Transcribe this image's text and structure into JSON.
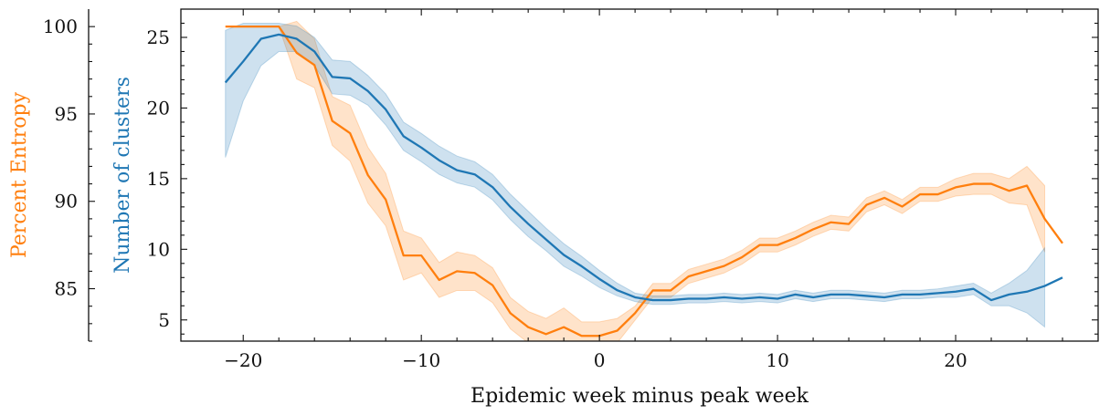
{
  "chart_data": {
    "type": "line",
    "title": "",
    "xlabel": "Epidemic week minus peak week",
    "xlim": [
      -23.5,
      28
    ],
    "x_ticks": [
      -20,
      -10,
      0,
      10,
      20
    ],
    "x_tick_labels": [
      "−20",
      "−10",
      "0",
      "10",
      "20"
    ],
    "y_left": {
      "label": "Number of clusters",
      "ylim": [
        3.5,
        27
      ],
      "ticks": [
        5,
        10,
        15,
        20,
        25
      ],
      "tick_labels": [
        "5",
        "10",
        "15",
        "20",
        "25"
      ],
      "color": "#1f77b4"
    },
    "y_outer": {
      "label": "Percent Entropy",
      "ylim": [
        82,
        101
      ],
      "ticks": [
        85,
        90,
        95,
        100
      ],
      "tick_labels": [
        "85",
        "90",
        "95",
        "100"
      ],
      "color": "#ff7f0e"
    },
    "series": [
      {
        "name": "Number of clusters",
        "axis": "y_left",
        "color": "#1f77b4",
        "x": [
          -21,
          -20,
          -19,
          -18,
          -17,
          -16,
          -15,
          -14,
          -13,
          -12,
          -11,
          -10,
          -9,
          -8,
          -7,
          -6,
          -5,
          -4,
          -3,
          -2,
          -1,
          0,
          1,
          2,
          3,
          4,
          5,
          6,
          7,
          8,
          9,
          10,
          11,
          12,
          13,
          14,
          15,
          16,
          17,
          18,
          19,
          20,
          21,
          22,
          23,
          24,
          25,
          26
        ],
        "values": [
          21.8,
          23.3,
          24.9,
          25.2,
          24.9,
          24.0,
          22.2,
          22.1,
          21.2,
          19.9,
          18.0,
          17.2,
          16.3,
          15.6,
          15.3,
          14.4,
          13.0,
          11.8,
          10.7,
          9.6,
          8.8,
          7.9,
          7.1,
          6.6,
          6.4,
          6.4,
          6.5,
          6.5,
          6.6,
          6.5,
          6.6,
          6.5,
          6.8,
          6.6,
          6.8,
          6.8,
          6.7,
          6.6,
          6.8,
          6.8,
          6.9,
          7.0,
          7.2,
          6.4,
          6.8,
          7.0,
          7.4,
          8.0
        ],
        "lower": [
          16.5,
          20.5,
          23.0,
          24.0,
          24.0,
          23.0,
          21.0,
          20.9,
          20.2,
          18.8,
          17.0,
          16.2,
          15.3,
          14.7,
          14.4,
          13.5,
          12.1,
          10.9,
          9.9,
          8.8,
          8.1,
          7.3,
          6.7,
          6.3,
          6.1,
          6.1,
          6.2,
          6.2,
          6.3,
          6.2,
          6.3,
          6.2,
          6.5,
          6.3,
          6.5,
          6.5,
          6.4,
          6.3,
          6.5,
          6.5,
          6.6,
          6.6,
          6.8,
          6.0,
          6.0,
          5.5,
          4.5,
          null
        ],
        "upper": [
          25.5,
          26.0,
          26.0,
          26.0,
          25.8,
          25.0,
          23.4,
          23.3,
          22.3,
          21.0,
          19.0,
          18.2,
          17.3,
          16.6,
          16.2,
          15.3,
          13.9,
          12.7,
          11.5,
          10.4,
          9.5,
          8.5,
          7.6,
          6.9,
          6.7,
          6.7,
          6.8,
          6.8,
          6.9,
          6.8,
          6.9,
          6.8,
          7.1,
          6.9,
          7.1,
          7.1,
          7.0,
          6.9,
          7.1,
          7.1,
          7.2,
          7.4,
          7.6,
          6.9,
          7.6,
          8.5,
          10.1,
          null
        ]
      },
      {
        "name": "Percent Entropy",
        "axis": "y_outer",
        "color": "#ff7f0e",
        "x": [
          -21,
          -20,
          -19,
          -18,
          -17,
          -16,
          -15,
          -14,
          -13,
          -12,
          -11,
          -10,
          -9,
          -8,
          -7,
          -6,
          -5,
          -4,
          -3,
          -2,
          -1,
          0,
          1,
          2,
          3,
          4,
          5,
          6,
          7,
          8,
          9,
          10,
          11,
          12,
          13,
          14,
          15,
          16,
          17,
          18,
          19,
          20,
          21,
          22,
          23,
          24,
          25,
          26
        ],
        "values": [
          100.0,
          100.0,
          100.0,
          100.0,
          98.5,
          97.8,
          94.6,
          93.9,
          91.5,
          90.1,
          86.9,
          86.9,
          85.5,
          86.0,
          85.9,
          85.2,
          83.6,
          82.8,
          82.4,
          82.8,
          82.3,
          82.3,
          82.6,
          83.6,
          84.9,
          84.9,
          85.7,
          86.0,
          86.3,
          86.8,
          87.5,
          87.5,
          87.9,
          88.4,
          88.8,
          88.7,
          89.8,
          90.2,
          89.7,
          90.4,
          90.4,
          90.8,
          91.0,
          91.0,
          90.6,
          90.9,
          89.0,
          87.6
        ],
        "lower": [
          null,
          null,
          null,
          null,
          97.0,
          96.5,
          93.2,
          92.3,
          89.9,
          88.6,
          85.5,
          85.9,
          84.5,
          84.9,
          84.9,
          84.2,
          82.7,
          81.9,
          81.5,
          81.7,
          81.5,
          81.5,
          81.9,
          83.2,
          84.5,
          84.5,
          85.3,
          85.6,
          85.9,
          86.4,
          87.1,
          87.1,
          87.5,
          88.0,
          88.4,
          88.3,
          89.4,
          89.8,
          89.3,
          90.0,
          90.0,
          90.3,
          90.4,
          90.4,
          89.9,
          89.8,
          87.1,
          null
        ],
        "upper": [
          null,
          null,
          null,
          null,
          100.3,
          99.3,
          96.0,
          95.5,
          93.1,
          91.6,
          88.3,
          87.9,
          86.5,
          87.1,
          86.9,
          86.2,
          84.5,
          83.7,
          83.3,
          83.9,
          83.1,
          83.1,
          83.3,
          84.0,
          85.3,
          85.3,
          86.1,
          86.4,
          86.7,
          87.2,
          87.9,
          87.9,
          88.3,
          88.8,
          89.2,
          89.1,
          90.2,
          90.6,
          90.1,
          90.8,
          90.8,
          91.3,
          91.6,
          91.6,
          91.3,
          92.0,
          90.9,
          null
        ]
      }
    ]
  }
}
